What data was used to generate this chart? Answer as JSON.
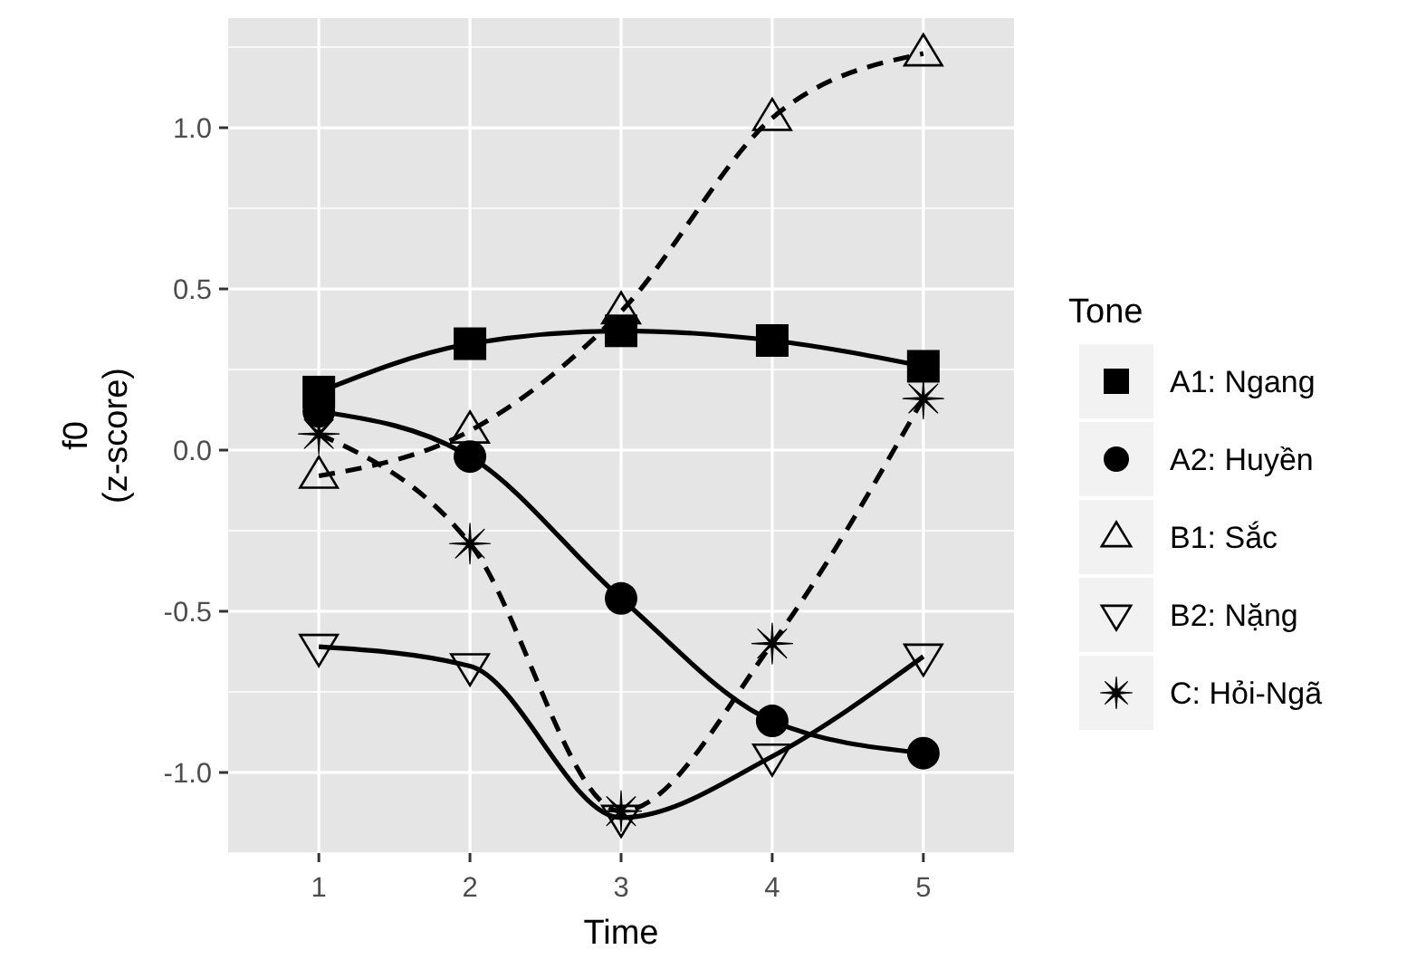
{
  "chart_data": {
    "type": "line",
    "xlabel": "Time",
    "ylabel": "f0\n(z-score)",
    "legend_title": "Tone",
    "legend": "right",
    "grid": true,
    "x": [
      1,
      2,
      3,
      4,
      5
    ],
    "xlim": [
      0.4,
      5.6
    ],
    "xticks": [
      1,
      2,
      3,
      4,
      5
    ],
    "ylim": [
      -1.25,
      1.34
    ],
    "yticks": [
      {
        "value": -1,
        "label": "-1.0"
      },
      -0.5,
      {
        "value": 0,
        "label": "0.0"
      },
      0.5,
      {
        "value": 1,
        "label": "1.0"
      }
    ],
    "series": [
      {
        "name": "A1: Ngang",
        "color": "#000000",
        "marker": "square",
        "line_style": "solid",
        "values": [
          0.18,
          0.33,
          0.37,
          0.34,
          0.26
        ]
      },
      {
        "name": "A2: Huyền",
        "color": "#000000",
        "marker": "circle",
        "line_style": "solid",
        "values": [
          0.12,
          -0.02,
          -0.46,
          -0.84,
          -0.94
        ]
      },
      {
        "name": "B1: Sắc",
        "color": "#000000",
        "marker": "triangle",
        "line_style": "dashed",
        "values": [
          -0.08,
          0.06,
          0.43,
          1.03,
          1.23
        ]
      },
      {
        "name": "B2: Nặng",
        "color": "#000000",
        "marker": "triangle-down",
        "line_style": "solid",
        "values": [
          -0.61,
          -0.67,
          -1.14,
          -0.95,
          -0.64
        ]
      },
      {
        "name": "C: Hỏi-Ngã",
        "color": "#000000",
        "marker": "cross",
        "line_style": "dashed",
        "values": [
          0.05,
          -0.29,
          -1.12,
          -0.6,
          0.16
        ]
      }
    ]
  }
}
